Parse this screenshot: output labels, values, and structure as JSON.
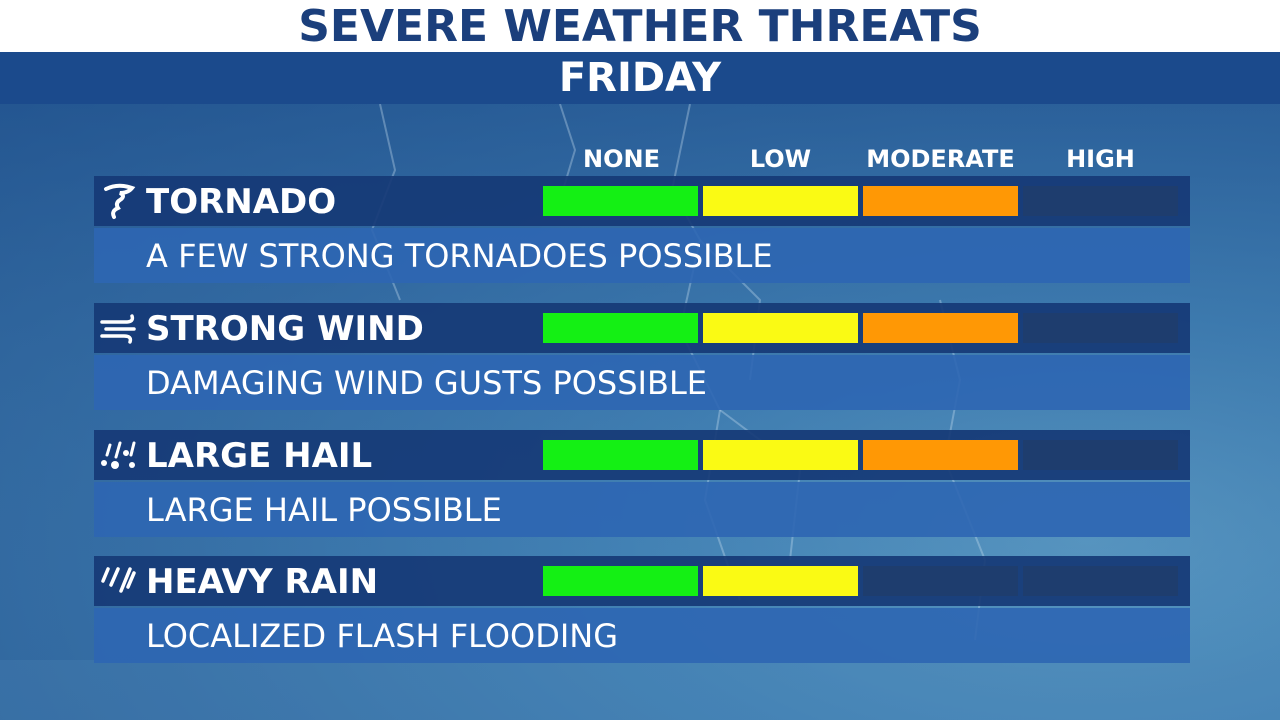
{
  "header": {
    "title": "SEVERE WEATHER THREATS",
    "day": "FRIDAY"
  },
  "levels": [
    "NONE",
    "LOW",
    "MODERATE",
    "HIGH"
  ],
  "colors": {
    "none": "#14f014",
    "low": "#fafa14",
    "moderate": "#ff9805",
    "empty": "#1e3d6e",
    "title_text": "#1b3f7c",
    "day_bar": "#1b4a8c"
  },
  "threats": [
    {
      "name": "TORNADO",
      "icon": "tornado-icon",
      "description": "A FEW STRONG TORNADOES POSSIBLE",
      "level": "MODERATE",
      "level_index": 2
    },
    {
      "name": "STRONG WIND",
      "icon": "wind-icon",
      "description": "DAMAGING WIND GUSTS POSSIBLE",
      "level": "MODERATE",
      "level_index": 2
    },
    {
      "name": "LARGE HAIL",
      "icon": "hail-icon",
      "description": "LARGE HAIL POSSIBLE",
      "level": "MODERATE",
      "level_index": 2
    },
    {
      "name": "HEAVY RAIN",
      "icon": "rain-icon",
      "description": "LOCALIZED FLASH FLOODING",
      "level": "LOW",
      "level_index": 1
    }
  ]
}
